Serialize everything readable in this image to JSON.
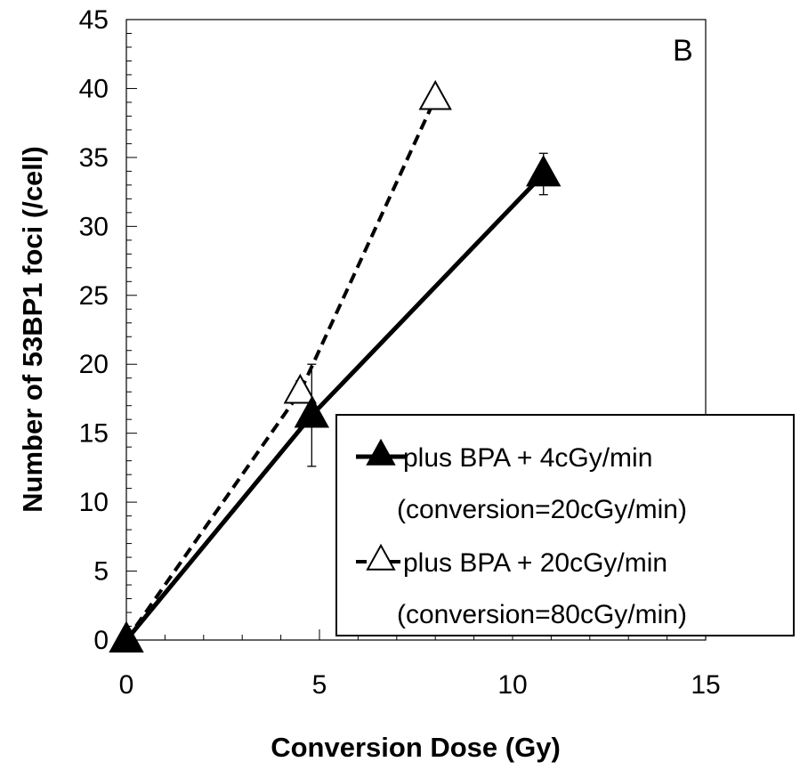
{
  "chart_data": {
    "type": "line",
    "panel_label": "B",
    "xlabel": "Conversion Dose (Gy)",
    "ylabel": "Number of 53BP1 foci (/cell)",
    "xlim": [
      0,
      15
    ],
    "ylim": [
      0,
      45
    ],
    "x_ticks": [
      "0",
      "5",
      "10",
      "15"
    ],
    "y_ticks": [
      "0",
      "5",
      "10",
      "15",
      "20",
      "25",
      "30",
      "35",
      "40",
      "45"
    ],
    "grid": false,
    "legend_position": "bottom-right",
    "series": [
      {
        "name": "plus BPA + 4cGy/min",
        "name_line2": "(conversion=20cGy/min)",
        "line_style": "solid",
        "marker": "filled-triangle",
        "color": "#000000",
        "points": [
          {
            "x": 0,
            "y": 0,
            "err": 0
          },
          {
            "x": 4.8,
            "y": 16.3,
            "err": 3.7
          },
          {
            "x": 10.8,
            "y": 33.8,
            "err": 1.5
          }
        ]
      },
      {
        "name": "plus BPA + 20cGy/min",
        "name_line2": "(conversion=80cGy/min)",
        "line_style": "dashed",
        "marker": "open-triangle",
        "color": "#000000",
        "points": [
          {
            "x": 0,
            "y": 0,
            "err": 0
          },
          {
            "x": 4.5,
            "y": 18.0,
            "err": 0.8
          },
          {
            "x": 8.0,
            "y": 39.3,
            "err": 0.5
          }
        ]
      }
    ]
  }
}
